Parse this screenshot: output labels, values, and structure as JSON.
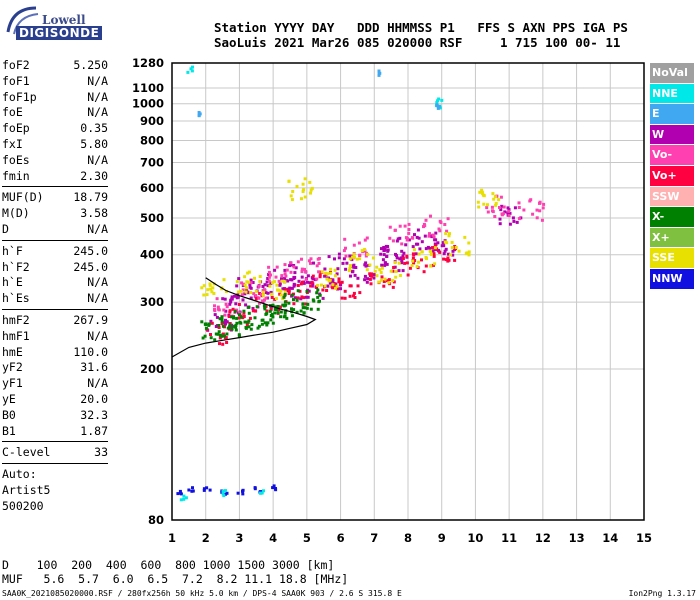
{
  "logo": {
    "line1": "Lowell",
    "line2": "DIGISONDE"
  },
  "header": {
    "line1": "Station YYYY DAY   DDD HHMMSS P1   FFS S AXN PPS IGA PS",
    "line2": "SaoLuis 2021 Mar26 085 020000 RSF     1 715 100 00- 11"
  },
  "params": [
    {
      "name": "foF2",
      "value": "5.250"
    },
    {
      "name": "foF1",
      "value": "N/A"
    },
    {
      "name": "foF1p",
      "value": "N/A"
    },
    {
      "name": "foE",
      "value": "N/A"
    },
    {
      "name": "foEp",
      "value": "0.35"
    },
    {
      "name": "fxI",
      "value": "5.80"
    },
    {
      "name": "foEs",
      "value": "N/A"
    },
    {
      "name": "fmin",
      "value": "2.30"
    },
    {
      "sep": true
    },
    {
      "name": "MUF(D)",
      "value": "18.79"
    },
    {
      "name": "M(D)",
      "value": "3.58"
    },
    {
      "name": "D",
      "value": "N/A"
    },
    {
      "sep": true
    },
    {
      "name": "h`F",
      "value": "245.0"
    },
    {
      "name": "h`F2",
      "value": "245.0"
    },
    {
      "name": "h`E",
      "value": "N/A"
    },
    {
      "name": "h`Es",
      "value": "N/A"
    },
    {
      "sep": true
    },
    {
      "name": "hmF2",
      "value": "267.9"
    },
    {
      "name": "hmF1",
      "value": "N/A"
    },
    {
      "name": "hmE",
      "value": "110.0"
    },
    {
      "name": "yF2",
      "value": "31.6"
    },
    {
      "name": "yF1",
      "value": "N/A"
    },
    {
      "name": "yE",
      "value": "20.0"
    },
    {
      "name": "B0",
      "value": "32.3"
    },
    {
      "name": "B1",
      "value": "1.87"
    },
    {
      "sep": true
    },
    {
      "name": "C-level",
      "value": "33"
    },
    {
      "sep": true
    }
  ],
  "scaling": {
    "line1": "Auto:",
    "line2": "Artist5",
    "line3": "500200"
  },
  "legend": [
    {
      "label": "NoVal",
      "color": "#a0a0a0"
    },
    {
      "label": "NNE",
      "color": "#00e8e8"
    },
    {
      "label": "E",
      "color": "#40a8f0"
    },
    {
      "label": "W",
      "color": "#b000b0"
    },
    {
      "label": "Vo-",
      "color": "#ff40b0"
    },
    {
      "label": "Vo+",
      "color": "#ff0040"
    },
    {
      "label": "SSW",
      "color": "#ffb0b0"
    },
    {
      "label": "X-",
      "color": "#008000"
    },
    {
      "label": "X+",
      "color": "#80c040"
    },
    {
      "label": "SSE",
      "color": "#e8e000"
    },
    {
      "label": "NNW",
      "color": "#1010e0"
    }
  ],
  "mufTable": {
    "line1": "D    100  200  400  600  800 1000 1500 3000 [km]",
    "line2": "MUF   5.6  5.7  6.0  6.5  7.2  8.2 11.1 18.8 [MHz]"
  },
  "footer": {
    "left": "SAA0K_2021085020000.RSF / 280fx256h 50 kHz 5.0 km / DPS-4 SAA0K 903 / 2.6 S 315.8 E",
    "right": "Ion2Png 1.3.17"
  },
  "chart_data": {
    "type": "scatter",
    "title": "",
    "xlabel": "",
    "ylabel": "",
    "xlim": [
      1,
      15
    ],
    "ylim": [
      80,
      1280
    ],
    "y_scale": "log",
    "x_ticks": [
      "1",
      "2",
      "3",
      "4",
      "5",
      "6",
      "7",
      "8",
      "9",
      "10",
      "11",
      "12",
      "13",
      "14",
      "15"
    ],
    "y_ticks": [
      80,
      200,
      300,
      400,
      500,
      600,
      700,
      800,
      900,
      1000,
      1100,
      1280
    ],
    "grid": true,
    "series": [
      {
        "name": "W",
        "color": "#b000b0",
        "points": [
          [
            2.4,
            270
          ],
          [
            2.8,
            300
          ],
          [
            3.2,
            330
          ],
          [
            3.6,
            310
          ],
          [
            4.0,
            345
          ],
          [
            4.4,
            330
          ],
          [
            4.8,
            360
          ],
          [
            5.2,
            330
          ],
          [
            5.6,
            350
          ],
          [
            6.0,
            380
          ],
          [
            6.6,
            360
          ],
          [
            7.0,
            400
          ],
          [
            7.6,
            390
          ],
          [
            8.0,
            420
          ],
          [
            8.5,
            440
          ],
          [
            9.0,
            420
          ],
          [
            11.0,
            510
          ]
        ]
      },
      {
        "name": "Vo+",
        "color": "#ff0040",
        "points": [
          [
            2.3,
            250
          ],
          [
            3.0,
            280
          ],
          [
            3.8,
            300
          ],
          [
            4.6,
            320
          ],
          [
            5.4,
            340
          ],
          [
            6.2,
            330
          ],
          [
            7.2,
            350
          ],
          [
            8.2,
            380
          ],
          [
            9.0,
            400
          ]
        ]
      },
      {
        "name": "Vo-",
        "color": "#ff40b0",
        "points": [
          [
            2.6,
            290
          ],
          [
            3.4,
            320
          ],
          [
            4.2,
            360
          ],
          [
            5.0,
            370
          ],
          [
            6.4,
            420
          ],
          [
            7.8,
            460
          ],
          [
            8.8,
            480
          ],
          [
            10.6,
            540
          ],
          [
            11.6,
            530
          ]
        ]
      },
      {
        "name": "SSE",
        "color": "#e8e000",
        "points": [
          [
            2.2,
            330
          ],
          [
            3.2,
            340
          ],
          [
            4.0,
            330
          ],
          [
            4.8,
            600
          ],
          [
            5.5,
            350
          ],
          [
            6.6,
            390
          ],
          [
            7.4,
            360
          ],
          [
            8.4,
            400
          ],
          [
            9.4,
            430
          ],
          [
            10.4,
            560
          ]
        ]
      },
      {
        "name": "X-",
        "color": "#008000",
        "points": [
          [
            2.2,
            255
          ],
          [
            2.6,
            262
          ],
          [
            3.0,
            268
          ],
          [
            3.4,
            276
          ],
          [
            3.8,
            284
          ],
          [
            4.2,
            290
          ],
          [
            4.6,
            300
          ],
          [
            5.0,
            305
          ]
        ]
      },
      {
        "name": "NNW",
        "color": "#1010e0",
        "points": [
          [
            1.2,
            95
          ],
          [
            1.5,
            97
          ],
          [
            2.0,
            98
          ],
          [
            2.5,
            96
          ],
          [
            3.0,
            96
          ],
          [
            3.5,
            97
          ],
          [
            4.0,
            98
          ]
        ]
      },
      {
        "name": "NNE",
        "color": "#00e8e8",
        "points": [
          [
            1.3,
            92
          ],
          [
            2.5,
            95
          ],
          [
            3.6,
            96
          ],
          [
            1.5,
            1240
          ],
          [
            8.9,
            1020
          ],
          [
            8.85,
            1000
          ]
        ]
      },
      {
        "name": "E",
        "color": "#40a8f0",
        "points": [
          [
            7.1,
            1210
          ],
          [
            8.9,
            990
          ],
          [
            1.8,
            950
          ]
        ]
      }
    ],
    "trace": {
      "name": "h'F",
      "points": [
        [
          1.0,
          215
        ],
        [
          1.5,
          228
        ],
        [
          2.0,
          234
        ],
        [
          2.5,
          238
        ],
        [
          3.0,
          242
        ],
        [
          3.5,
          246
        ],
        [
          4.0,
          250
        ],
        [
          4.5,
          256
        ],
        [
          5.0,
          262
        ],
        [
          5.25,
          270
        ],
        [
          5.0,
          275
        ],
        [
          4.6,
          282
        ],
        [
          4.2,
          288
        ],
        [
          3.8,
          296
        ],
        [
          3.4,
          304
        ],
        [
          3.0,
          312
        ],
        [
          2.6,
          322
        ],
        [
          2.3,
          334
        ],
        [
          2.0,
          348
        ]
      ]
    }
  }
}
